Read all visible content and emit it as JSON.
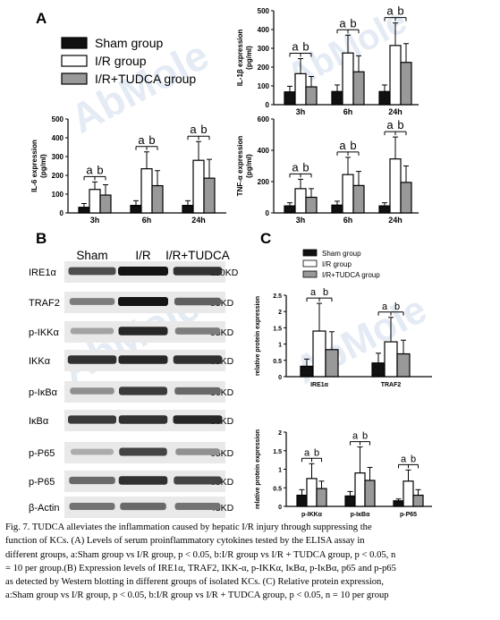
{
  "watermark": "AbMole",
  "panels": {
    "A": "A",
    "B": "B",
    "C": "C"
  },
  "legend": {
    "entries": [
      "Sham group",
      "I/R group",
      "I/R+TUDCA group"
    ],
    "colors": [
      "#111111",
      "#ffffff",
      "#999999"
    ]
  },
  "legend_c": {
    "entries": [
      "Sham group",
      "I/R group",
      "I/R+TUDCA group"
    ]
  },
  "colors": {
    "sham": "#111111",
    "ir": "#ffffff",
    "tudca": "#999999",
    "watermark": "#dfe7f2"
  },
  "chart_data": [
    {
      "id": "il1b",
      "type": "bar",
      "ylabel": "IL-1β expression\n(pg/ml)",
      "categories": [
        "3h",
        "6h",
        "24h"
      ],
      "ylim": [
        0,
        500
      ],
      "yticks": [
        0,
        100,
        200,
        300,
        400,
        500
      ],
      "series": [
        {
          "name": "Sham group",
          "values": [
            68,
            70,
            70
          ],
          "err": [
            30,
            35,
            35
          ]
        },
        {
          "name": "I/R group",
          "values": [
            165,
            275,
            315
          ],
          "err": [
            80,
            95,
            120
          ]
        },
        {
          "name": "I/R+TUDCA group",
          "values": [
            95,
            175,
            225
          ],
          "err": [
            55,
            85,
            100
          ]
        }
      ],
      "sig": [
        "a",
        "b"
      ]
    },
    {
      "id": "il6",
      "type": "bar",
      "ylabel": "IL-6 expression\n(pg/ml)",
      "categories": [
        "3h",
        "6h",
        "24h"
      ],
      "ylim": [
        0,
        500
      ],
      "yticks": [
        0,
        100,
        200,
        300,
        400,
        500
      ],
      "series": [
        {
          "name": "Sham group",
          "values": [
            30,
            40,
            40
          ],
          "err": [
            20,
            25,
            25
          ]
        },
        {
          "name": "I/R group",
          "values": [
            125,
            235,
            280
          ],
          "err": [
            40,
            90,
            100
          ]
        },
        {
          "name": "I/R+TUDCA group",
          "values": [
            95,
            145,
            185
          ],
          "err": [
            55,
            80,
            100
          ]
        }
      ],
      "sig": [
        "a",
        "b"
      ]
    },
    {
      "id": "tnfa",
      "type": "bar",
      "ylabel": "TNF-α expression\n(pg/ml)",
      "categories": [
        "3h",
        "6h",
        "24h"
      ],
      "ylim": [
        0,
        600
      ],
      "yticks": [
        0,
        200,
        400,
        600
      ],
      "series": [
        {
          "name": "Sham group",
          "values": [
            45,
            50,
            45
          ],
          "err": [
            20,
            25,
            20
          ]
        },
        {
          "name": "I/R group",
          "values": [
            155,
            245,
            345
          ],
          "err": [
            60,
            110,
            140
          ]
        },
        {
          "name": "I/R+TUDCA group",
          "values": [
            100,
            175,
            195
          ],
          "err": [
            55,
            90,
            105
          ]
        }
      ],
      "sig": [
        "a",
        "b"
      ]
    },
    {
      "id": "c1",
      "type": "bar",
      "ylabel": "relative protein expression",
      "categories": [
        "IRE1α",
        "TRAF2"
      ],
      "ylim": [
        0,
        2.5
      ],
      "yticks": [
        0,
        0.5,
        1,
        1.5,
        2,
        2.5
      ],
      "series": [
        {
          "name": "Sham group",
          "values": [
            0.32,
            0.42
          ],
          "err": [
            0.22,
            0.3
          ]
        },
        {
          "name": "I/R group",
          "values": [
            1.4,
            1.07
          ],
          "err": [
            0.85,
            0.75
          ]
        },
        {
          "name": "I/R+TUDCA group",
          "values": [
            0.83,
            0.7
          ],
          "err": [
            0.55,
            0.42
          ]
        }
      ],
      "sig": [
        "a",
        "b"
      ]
    },
    {
      "id": "c2",
      "type": "bar",
      "ylabel": "relative protein expression",
      "categories": [
        "p-IKKα",
        "p-IκBα",
        "p-P65"
      ],
      "ylim": [
        0,
        2
      ],
      "yticks": [
        0,
        0.5,
        1,
        1.5,
        2
      ],
      "series": [
        {
          "name": "Sham group",
          "values": [
            0.3,
            0.28,
            0.15
          ],
          "err": [
            0.15,
            0.12,
            0.05
          ]
        },
        {
          "name": "I/R group",
          "values": [
            0.75,
            0.9,
            0.68
          ],
          "err": [
            0.4,
            0.7,
            0.3
          ]
        },
        {
          "name": "I/R+TUDCA group",
          "values": [
            0.48,
            0.7,
            0.3
          ],
          "err": [
            0.2,
            0.35,
            0.15
          ]
        }
      ],
      "sig": [
        "a",
        "b"
      ]
    }
  ],
  "blot": {
    "columns": [
      "Sham",
      "I/R",
      "I/R+TUDCA"
    ],
    "rows": [
      {
        "label": "IRE1α",
        "size": "110KD",
        "intensity": [
          0.7,
          1.0,
          0.85
        ]
      },
      {
        "label": "TRAF2",
        "size": "55KD",
        "intensity": [
          0.45,
          1.0,
          0.6
        ]
      },
      {
        "label": "p-IKKα",
        "size": "85KD",
        "intensity": [
          0.25,
          0.9,
          0.45
        ]
      },
      {
        "label": "IKKα",
        "size": "85KD",
        "intensity": [
          0.85,
          0.9,
          0.85
        ]
      },
      {
        "label": "p-IκBα",
        "size": "36KD",
        "intensity": [
          0.35,
          0.8,
          0.55
        ]
      },
      {
        "label": "IκBα",
        "size": "36KD",
        "intensity": [
          0.8,
          0.85,
          0.9
        ]
      },
      {
        "label": "p-P65",
        "size": "65KD",
        "intensity": [
          0.2,
          0.75,
          0.35
        ]
      },
      {
        "label": "p-P65",
        "size": "65KD",
        "intensity": [
          0.55,
          0.85,
          0.75
        ]
      },
      {
        "label": "β-Actin",
        "size": "45KD",
        "intensity": [
          0.5,
          0.55,
          0.5
        ]
      }
    ]
  },
  "caption": {
    "lines": [
      "Fig. 7. TUDCA alleviates the inflammation caused by hepatic I/R injury through suppressing the",
      "function of KCs. (A) Levels of serum proinflammatory cytokines tested by the ELISA assay in",
      "different groups, a:Sham group vs I/R group, p < 0.05, b:I/R group vs I/R + TUDCA group, p < 0.05, n",
      "= 10 per group.(B) Expression levels of IRE1α, TRAF2, IKK-α, p-IKKα, IκBα, p-IκBα, p65 and p-p65",
      "as detected by Western blotting in different groups of isolated KCs. (C) Relative protein expression,",
      "a:Sham group vs I/R group, p < 0.05, b:I/R group vs I/R + TUDCA group, p < 0.05, n = 10 per group"
    ]
  }
}
